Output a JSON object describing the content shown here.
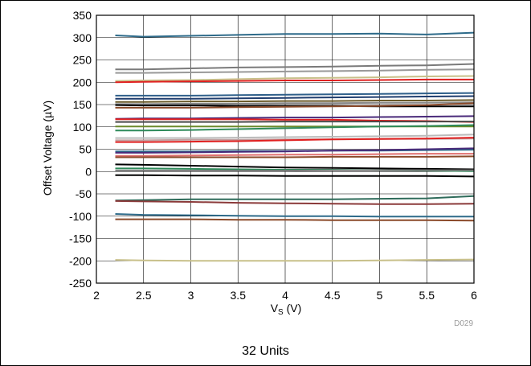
{
  "chart_data": {
    "type": "line",
    "xlabel_main": "V",
    "xlabel_sub": "S",
    "xlabel_unit": " (V)",
    "ylabel": "Offset Voltage (µV)",
    "xlim": [
      2,
      6
    ],
    "ylim": [
      -250,
      350
    ],
    "x_ticks": [
      "2",
      "2.5",
      "3",
      "3.5",
      "4",
      "4.5",
      "5",
      "5.5",
      "6"
    ],
    "y_ticks": [
      "350",
      "300",
      "250",
      "200",
      "150",
      "100",
      "50",
      "0",
      "-50",
      "-100",
      "-150",
      "-200",
      "-250"
    ],
    "grid": true,
    "figure_code": "D029",
    "caption": "32 Units",
    "x": [
      2.2,
      2.5,
      3,
      3.5,
      4,
      4.5,
      5,
      5.5,
      6
    ],
    "series": [
      {
        "color": "#2e6b8a",
        "values": [
          305,
          302,
          304,
          306,
          308,
          308,
          309,
          307,
          311
        ]
      },
      {
        "color": "#7a7a7a",
        "values": [
          229,
          229,
          231,
          233,
          234,
          235,
          237,
          238,
          241
        ]
      },
      {
        "color": "#999999",
        "values": [
          221,
          221,
          222,
          223,
          224,
          225,
          226,
          228,
          229
        ]
      },
      {
        "color": "#c8c08a",
        "values": [
          203,
          204,
          205,
          207,
          209,
          210,
          211,
          213,
          214
        ]
      },
      {
        "color": "#e02020",
        "values": [
          200,
          201,
          202,
          203,
          204,
          204,
          205,
          206,
          206
        ]
      },
      {
        "color": "#2e5f8a",
        "values": [
          170,
          170,
          170,
          171,
          172,
          173,
          174,
          175,
          176
        ]
      },
      {
        "color": "#1f3d6e",
        "values": [
          163,
          163,
          163,
          164,
          165,
          166,
          167,
          168,
          169
        ]
      },
      {
        "color": "#6a5a2a",
        "values": [
          156,
          156,
          157,
          157,
          158,
          158,
          159,
          159,
          160
        ]
      },
      {
        "color": "#888888",
        "values": [
          151,
          151,
          152,
          152,
          153,
          153,
          154,
          154,
          155
        ]
      },
      {
        "color": "#000000",
        "values": [
          149,
          148,
          148,
          147,
          147,
          147,
          146,
          146,
          146
        ]
      },
      {
        "color": "#8b4a2a",
        "values": [
          143,
          143,
          143,
          144,
          145,
          146,
          147,
          149,
          153
        ]
      },
      {
        "color": "#4a2a7a",
        "values": [
          118,
          119,
          119,
          120,
          121,
          121,
          122,
          123,
          124
        ]
      },
      {
        "color": "#e02020",
        "values": [
          117,
          117,
          117,
          117,
          116,
          116,
          114,
          113,
          111
        ]
      },
      {
        "color": "#4a4a4a",
        "values": [
          111,
          111,
          111,
          111,
          112,
          112,
          112,
          112,
          112
        ]
      },
      {
        "color": "#6b8a2a",
        "values": [
          101,
          101,
          101,
          101,
          101,
          101,
          101,
          101,
          101
        ]
      },
      {
        "color": "#2e8a5a",
        "values": [
          92,
          92,
          93,
          95,
          97,
          99,
          101,
          102,
          104
        ]
      },
      {
        "color": "#bbbbbb",
        "values": [
          75,
          75,
          75,
          76,
          77,
          78,
          79,
          80,
          83
        ]
      },
      {
        "color": "#c0a0a0",
        "values": [
          70,
          70,
          71,
          71,
          72,
          72,
          73,
          73,
          74
        ]
      },
      {
        "color": "#e02020",
        "values": [
          66,
          66,
          67,
          68,
          70,
          72,
          73,
          74,
          76
        ]
      },
      {
        "color": "#2e6b8a",
        "values": [
          45,
          45,
          45,
          46,
          46,
          47,
          47,
          48,
          49
        ]
      },
      {
        "color": "#4a2a7a",
        "values": [
          42,
          42,
          43,
          44,
          45,
          47,
          48,
          50,
          52
        ]
      },
      {
        "color": "#e07070",
        "values": [
          35,
          35,
          36,
          37,
          38,
          38,
          39,
          40,
          40
        ]
      },
      {
        "color": "#8b4a2a",
        "values": [
          32,
          32,
          32,
          32,
          32,
          33,
          33,
          33,
          34
        ]
      },
      {
        "color": "#000000",
        "values": [
          16,
          15,
          13,
          11,
          9,
          8,
          7,
          6,
          5
        ]
      },
      {
        "color": "#2e8a5a",
        "values": [
          7,
          7,
          6,
          5,
          4,
          4,
          3,
          2,
          1
        ]
      },
      {
        "color": "#777777",
        "values": [
          2,
          2,
          2,
          2,
          2,
          3,
          3,
          3,
          3
        ]
      },
      {
        "color": "#000000",
        "values": [
          -8,
          -8,
          -9,
          -9,
          -10,
          -10,
          -10,
          -10,
          -11
        ]
      },
      {
        "color": "#2e6b5a",
        "values": [
          -65,
          -64,
          -62,
          -62,
          -62,
          -62,
          -61,
          -60,
          -55
        ]
      },
      {
        "color": "#8b3a3a",
        "values": [
          -66,
          -67,
          -68,
          -70,
          -71,
          -72,
          -73,
          -73,
          -72
        ]
      },
      {
        "color": "#2e6b8a",
        "values": [
          -95,
          -97,
          -98,
          -99,
          -100,
          -100,
          -101,
          -101,
          -101
        ]
      },
      {
        "color": "#8b4a2a",
        "values": [
          -107,
          -107,
          -107,
          -108,
          -108,
          -109,
          -109,
          -109,
          -110
        ]
      },
      {
        "color": "#c8c08a",
        "values": [
          -198,
          -199,
          -200,
          -200,
          -200,
          -200,
          -199,
          -198,
          -197
        ]
      }
    ]
  }
}
